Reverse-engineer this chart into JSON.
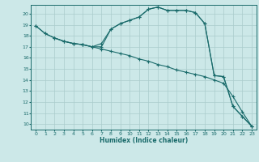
{
  "title": "",
  "xlabel": "Humidex (Indice chaleur)",
  "bg_color": "#cce8e8",
  "grid_color": "#aacccc",
  "line_color": "#1a6b6b",
  "xlim": [
    -0.5,
    23.5
  ],
  "ylim": [
    9.5,
    20.8
  ],
  "yticks": [
    10,
    11,
    12,
    13,
    14,
    15,
    16,
    17,
    18,
    19,
    20
  ],
  "xticks": [
    0,
    1,
    2,
    3,
    4,
    5,
    6,
    7,
    8,
    9,
    10,
    11,
    12,
    13,
    14,
    15,
    16,
    17,
    18,
    19,
    20,
    21,
    22,
    23
  ],
  "line1_x": [
    0,
    1,
    2,
    3,
    4,
    5,
    6,
    7,
    8,
    9,
    10,
    11,
    12,
    13,
    14,
    15,
    16,
    17,
    18,
    19,
    20,
    21,
    22,
    23
  ],
  "line1_y": [
    18.9,
    18.2,
    17.8,
    17.5,
    17.3,
    17.2,
    17.0,
    17.0,
    18.6,
    19.1,
    19.4,
    19.7,
    20.4,
    20.6,
    20.3,
    20.3,
    20.3,
    20.1,
    19.1,
    14.4,
    14.3,
    11.6,
    10.7,
    9.8
  ],
  "line2_x": [
    0,
    1,
    2,
    3,
    4,
    5,
    6,
    7,
    8,
    9,
    10,
    11,
    12,
    13,
    14,
    15,
    16,
    17,
    18,
    19,
    20,
    21,
    22,
    23
  ],
  "line2_y": [
    18.9,
    18.2,
    17.8,
    17.5,
    17.3,
    17.2,
    17.0,
    16.8,
    16.6,
    16.4,
    16.2,
    15.9,
    15.7,
    15.4,
    15.2,
    14.9,
    14.7,
    14.5,
    14.3,
    14.0,
    13.7,
    12.5,
    11.1,
    9.8
  ],
  "line3_x": [
    2,
    3,
    4,
    5,
    6,
    7,
    8,
    9,
    10,
    11,
    12,
    13,
    14,
    15,
    16,
    17,
    18,
    19,
    20,
    21,
    22,
    23
  ],
  "line3_y": [
    17.8,
    17.5,
    17.3,
    17.2,
    17.0,
    17.3,
    18.6,
    19.1,
    19.4,
    19.7,
    20.4,
    20.6,
    20.3,
    20.3,
    20.3,
    20.1,
    19.1,
    14.4,
    14.3,
    11.6,
    10.7,
    9.8
  ],
  "tick_fontsize": 4.5,
  "xlabel_fontsize": 5.5,
  "marker_size": 2.5,
  "line_width": 0.8
}
